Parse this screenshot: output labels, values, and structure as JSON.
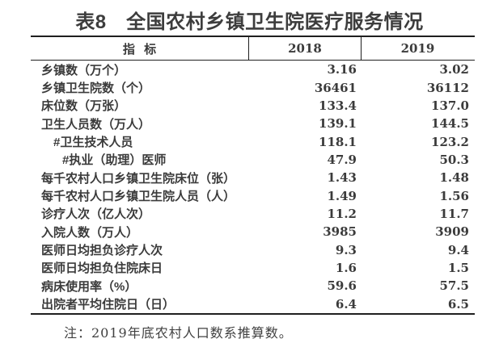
{
  "title": "表8　全国农村乡镇卫生院医疗服务情况",
  "table": {
    "columns": [
      "指 标",
      "2018",
      "2019"
    ],
    "rows": [
      {
        "label": "乡镇数（万个）",
        "indent": 0,
        "values": [
          "3.16",
          "3.02"
        ]
      },
      {
        "label": "乡镇卫生院数（个）",
        "indent": 0,
        "values": [
          "36461",
          "36112"
        ]
      },
      {
        "label": "床位数（万张）",
        "indent": 0,
        "values": [
          "133.4",
          "137.0"
        ]
      },
      {
        "label": "卫生人员数（万人）",
        "indent": 0,
        "values": [
          "139.1",
          "144.5"
        ]
      },
      {
        "label": "#卫生技术人员",
        "indent": 1,
        "values": [
          "118.1",
          "123.2"
        ]
      },
      {
        "label": "#执业（助理）医师",
        "indent": 2,
        "values": [
          "47.9",
          "50.3"
        ]
      },
      {
        "label": "每千农村人口乡镇卫生院床位（张）",
        "indent": 0,
        "values": [
          "1.43",
          "1.48"
        ]
      },
      {
        "label": "每千农村人口乡镇卫生院人员（人）",
        "indent": 0,
        "values": [
          "1.49",
          "1.56"
        ]
      },
      {
        "label": "诊疗人次（亿人次）",
        "indent": 0,
        "values": [
          "11.2",
          "11.7"
        ]
      },
      {
        "label": "入院人数（万人）",
        "indent": 0,
        "values": [
          "3985",
          "3909"
        ]
      },
      {
        "label": "医师日均担负诊疗人次",
        "indent": 0,
        "values": [
          "9.3",
          "9.4"
        ]
      },
      {
        "label": "医师日均担负住院床日",
        "indent": 0,
        "values": [
          "1.6",
          "1.5"
        ]
      },
      {
        "label": "病床使用率（%）",
        "indent": 0,
        "values": [
          "59.6",
          "57.5"
        ]
      },
      {
        "label": "出院者平均住院日（日）",
        "indent": 0,
        "values": [
          "6.4",
          "6.5"
        ]
      }
    ]
  },
  "note": "注：2019年底农村人口数系推算数。",
  "colors": {
    "text": "#3b3b3b",
    "border": "#1f1f1f",
    "note_text": "#404040",
    "background": "#ffffff"
  }
}
